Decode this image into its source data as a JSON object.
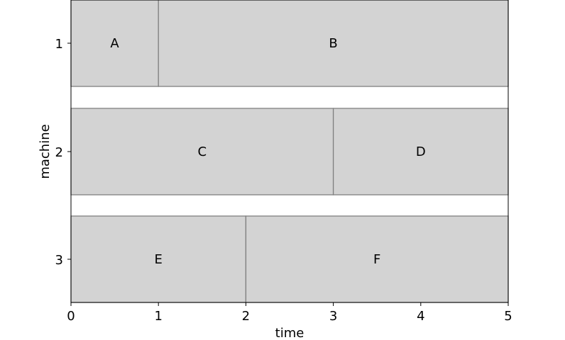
{
  "chart_data": {
    "type": "gantt",
    "xlabel": "time",
    "ylabel": "machine",
    "xlim": [
      0,
      5
    ],
    "xticks": [
      "0",
      "1",
      "2",
      "3",
      "4",
      "5"
    ],
    "yticks": [
      "1",
      "2",
      "3"
    ],
    "grid": false,
    "colors": {
      "bar_fill": "#d3d3d3",
      "bar_edge": "#808080"
    },
    "tasks": [
      {
        "label": "A",
        "machine": 1,
        "start": 0,
        "end": 1
      },
      {
        "label": "B",
        "machine": 1,
        "start": 1,
        "end": 5
      },
      {
        "label": "C",
        "machine": 2,
        "start": 0,
        "end": 3
      },
      {
        "label": "D",
        "machine": 2,
        "start": 3,
        "end": 5
      },
      {
        "label": "E",
        "machine": 3,
        "start": 0,
        "end": 2
      },
      {
        "label": "F",
        "machine": 3,
        "start": 2,
        "end": 5
      }
    ]
  }
}
